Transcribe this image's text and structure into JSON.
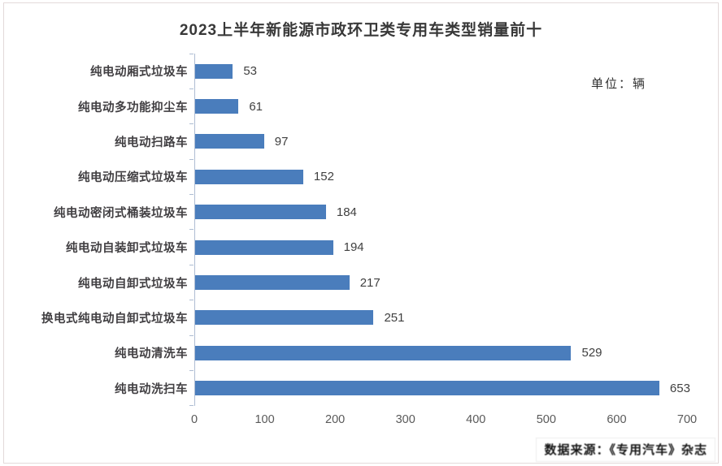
{
  "chart_data": {
    "type": "bar",
    "orientation": "horizontal",
    "title": "2023上半年新能源市政环卫类专用车类型销量前十",
    "unit_annotation": "单位：辆",
    "categories": [
      "纯电动厢式垃圾车",
      "纯电动多功能抑尘车",
      "纯电动扫路车",
      "纯电动压缩式垃圾车",
      "纯电动密闭式桶装垃圾车",
      "纯电动自装卸式垃圾车",
      "纯电动自卸式垃圾车",
      "换电式纯电动自卸式垃圾车",
      "纯电动清洗车",
      "纯电动洗扫车"
    ],
    "values": [
      53,
      61,
      97,
      152,
      184,
      194,
      217,
      251,
      529,
      653
    ],
    "xlabel": "",
    "ylabel": "",
    "xlim": [
      0,
      700
    ],
    "x_ticks": [
      "0",
      "100",
      "200",
      "300",
      "400",
      "500",
      "600",
      "700"
    ],
    "grid": false,
    "legend": false,
    "value_labels_shown": true,
    "bar_color": "#4a7dbc",
    "axis_line_color": "#aebdd3"
  },
  "footer": {
    "source": "数据来源：《专用汽车》杂志"
  }
}
